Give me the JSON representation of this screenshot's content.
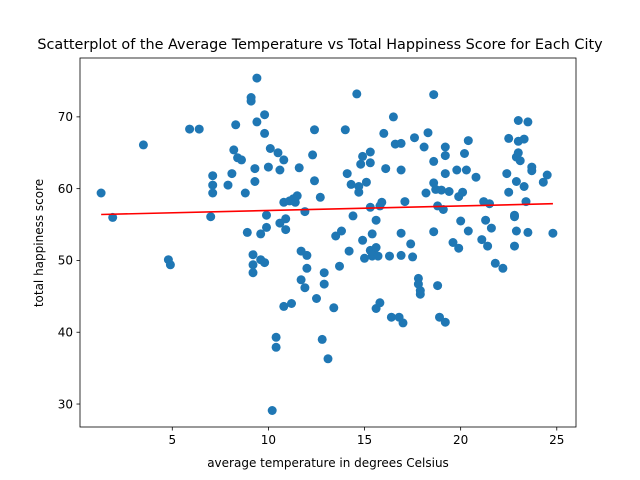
{
  "chart_data": {
    "type": "scatter",
    "title": "Scatterplot of the Average Temperature vs Total Happiness Score for Each City",
    "xlabel": "average temperature in degrees Celsius",
    "ylabel": "total happiness score",
    "xlim": [
      0.2,
      26.0
    ],
    "ylim": [
      26.8,
      78.2
    ],
    "xticks": [
      5,
      10,
      15,
      20,
      25
    ],
    "yticks": [
      30,
      40,
      50,
      60,
      70
    ],
    "grid": false,
    "legend": "none",
    "marker_color": "#1f77b4",
    "trend_color": "#ff0000",
    "trend_line": {
      "x": [
        1.3,
        24.8
      ],
      "y": [
        56.4,
        57.9
      ]
    },
    "points": [
      [
        1.3,
        59.4
      ],
      [
        1.9,
        56.0
      ],
      [
        3.5,
        66.1
      ],
      [
        4.8,
        50.1
      ],
      [
        4.9,
        49.4
      ],
      [
        5.9,
        68.3
      ],
      [
        6.4,
        68.3
      ],
      [
        7.0,
        56.1
      ],
      [
        7.1,
        59.4
      ],
      [
        7.1,
        60.5
      ],
      [
        7.1,
        61.8
      ],
      [
        7.9,
        60.5
      ],
      [
        8.1,
        62.1
      ],
      [
        8.2,
        65.4
      ],
      [
        8.3,
        68.9
      ],
      [
        8.4,
        64.3
      ],
      [
        8.6,
        64.0
      ],
      [
        8.8,
        59.4
      ],
      [
        8.9,
        53.9
      ],
      [
        9.1,
        72.2
      ],
      [
        9.1,
        72.7
      ],
      [
        9.2,
        50.8
      ],
      [
        9.2,
        49.4
      ],
      [
        9.2,
        48.3
      ],
      [
        9.3,
        61.0
      ],
      [
        9.3,
        62.8
      ],
      [
        9.4,
        75.4
      ],
      [
        9.4,
        69.3
      ],
      [
        9.6,
        53.7
      ],
      [
        9.6,
        50.1
      ],
      [
        9.8,
        67.7
      ],
      [
        9.8,
        70.3
      ],
      [
        9.9,
        56.3
      ],
      [
        9.9,
        54.6
      ],
      [
        9.8,
        49.7
      ],
      [
        10.0,
        63.0
      ],
      [
        10.1,
        65.6
      ],
      [
        10.2,
        29.1
      ],
      [
        10.4,
        39.3
      ],
      [
        10.4,
        37.9
      ],
      [
        10.5,
        65.0
      ],
      [
        10.6,
        62.6
      ],
      [
        10.6,
        55.2
      ],
      [
        10.8,
        43.6
      ],
      [
        10.8,
        64.0
      ],
      [
        10.8,
        58.1
      ],
      [
        10.9,
        54.3
      ],
      [
        10.9,
        55.8
      ],
      [
        11.1,
        58.3
      ],
      [
        11.2,
        44.0
      ],
      [
        11.3,
        58.6
      ],
      [
        11.4,
        58.1
      ],
      [
        11.5,
        59.0
      ],
      [
        11.6,
        62.9
      ],
      [
        11.7,
        51.3
      ],
      [
        11.7,
        47.3
      ],
      [
        11.9,
        56.8
      ],
      [
        11.9,
        46.2
      ],
      [
        12.0,
        50.7
      ],
      [
        12.0,
        48.9
      ],
      [
        12.3,
        64.7
      ],
      [
        12.4,
        68.2
      ],
      [
        12.4,
        61.1
      ],
      [
        12.5,
        44.7
      ],
      [
        12.7,
        58.8
      ],
      [
        12.8,
        39.0
      ],
      [
        12.9,
        46.7
      ],
      [
        12.9,
        48.3
      ],
      [
        13.1,
        36.3
      ],
      [
        13.4,
        43.4
      ],
      [
        13.5,
        53.4
      ],
      [
        13.7,
        49.2
      ],
      [
        13.8,
        54.1
      ],
      [
        14.0,
        68.2
      ],
      [
        14.1,
        62.1
      ],
      [
        14.2,
        51.3
      ],
      [
        14.3,
        60.6
      ],
      [
        14.4,
        56.2
      ],
      [
        14.6,
        73.2
      ],
      [
        14.7,
        59.5
      ],
      [
        14.7,
        60.3
      ],
      [
        14.8,
        63.4
      ],
      [
        14.9,
        52.8
      ],
      [
        14.9,
        64.5
      ],
      [
        15.0,
        50.3
      ],
      [
        15.1,
        60.9
      ],
      [
        15.3,
        65.1
      ],
      [
        15.3,
        63.6
      ],
      [
        15.3,
        57.4
      ],
      [
        15.3,
        51.4
      ],
      [
        15.4,
        50.6
      ],
      [
        15.4,
        53.7
      ],
      [
        15.5,
        50.9
      ],
      [
        15.6,
        51.8
      ],
      [
        15.6,
        55.6
      ],
      [
        15.7,
        50.6
      ],
      [
        15.6,
        43.3
      ],
      [
        15.8,
        44.1
      ],
      [
        15.8,
        57.6
      ],
      [
        15.9,
        58.1
      ],
      [
        16.0,
        67.7
      ],
      [
        16.1,
        62.8
      ],
      [
        16.3,
        50.6
      ],
      [
        16.4,
        42.1
      ],
      [
        16.5,
        70.0
      ],
      [
        16.6,
        66.2
      ],
      [
        16.8,
        42.1
      ],
      [
        16.9,
        50.7
      ],
      [
        16.9,
        53.8
      ],
      [
        16.9,
        62.6
      ],
      [
        16.9,
        66.3
      ],
      [
        17.0,
        41.3
      ],
      [
        17.1,
        58.2
      ],
      [
        17.4,
        52.3
      ],
      [
        17.5,
        50.5
      ],
      [
        17.6,
        67.1
      ],
      [
        17.8,
        47.5
      ],
      [
        17.8,
        46.7
      ],
      [
        17.9,
        45.8
      ],
      [
        17.9,
        45.3
      ],
      [
        18.1,
        65.8
      ],
      [
        18.2,
        59.4
      ],
      [
        18.3,
        67.8
      ],
      [
        18.6,
        73.1
      ],
      [
        18.6,
        63.8
      ],
      [
        18.6,
        54.0
      ],
      [
        18.6,
        60.8
      ],
      [
        18.7,
        59.9
      ],
      [
        18.8,
        57.6
      ],
      [
        18.8,
        46.5
      ],
      [
        18.9,
        42.1
      ],
      [
        19.0,
        59.8
      ],
      [
        19.1,
        57.1
      ],
      [
        19.2,
        62.1
      ],
      [
        19.2,
        65.8
      ],
      [
        19.2,
        64.6
      ],
      [
        19.2,
        41.4
      ],
      [
        19.4,
        59.6
      ],
      [
        19.6,
        52.5
      ],
      [
        19.8,
        62.6
      ],
      [
        19.9,
        58.9
      ],
      [
        19.9,
        51.7
      ],
      [
        20.0,
        55.5
      ],
      [
        20.1,
        59.5
      ],
      [
        20.2,
        64.9
      ],
      [
        20.3,
        62.6
      ],
      [
        20.4,
        66.7
      ],
      [
        20.4,
        54.1
      ],
      [
        20.8,
        61.6
      ],
      [
        21.1,
        52.9
      ],
      [
        21.2,
        58.2
      ],
      [
        21.3,
        55.6
      ],
      [
        21.4,
        52.0
      ],
      [
        21.5,
        57.9
      ],
      [
        21.6,
        54.5
      ],
      [
        21.8,
        49.6
      ],
      [
        22.2,
        48.9
      ],
      [
        22.4,
        62.1
      ],
      [
        22.5,
        59.5
      ],
      [
        22.5,
        67.0
      ],
      [
        22.8,
        56.3
      ],
      [
        22.8,
        56.1
      ],
      [
        22.8,
        52.0
      ],
      [
        22.9,
        54.1
      ],
      [
        22.9,
        61.0
      ],
      [
        22.9,
        64.4
      ],
      [
        23.0,
        65.0
      ],
      [
        23.0,
        66.6
      ],
      [
        23.0,
        69.5
      ],
      [
        23.1,
        63.9
      ],
      [
        23.3,
        66.9
      ],
      [
        23.3,
        60.3
      ],
      [
        23.4,
        58.2
      ],
      [
        23.5,
        53.9
      ],
      [
        23.5,
        69.3
      ],
      [
        23.7,
        62.5
      ],
      [
        23.7,
        63.0
      ],
      [
        24.3,
        60.9
      ],
      [
        24.5,
        61.9
      ],
      [
        24.8,
        53.8
      ]
    ]
  }
}
